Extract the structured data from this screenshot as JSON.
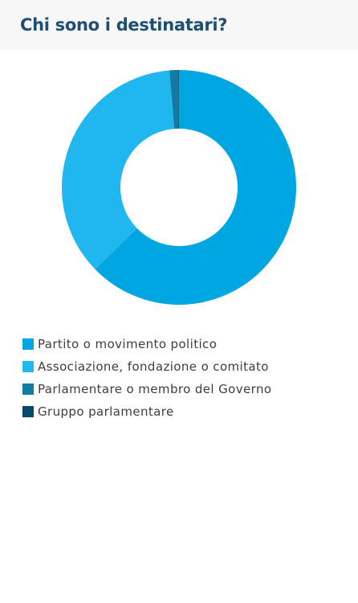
{
  "header": {
    "title": "Chi sono i destinatari?"
  },
  "chart_data": {
    "type": "pie",
    "donut": true,
    "legend_position": "bottom-left",
    "categories": [
      "Partito o movimento politico",
      "Associazione, fondazione o comitato",
      "Parlamentare o membro del Governo",
      "Gruppo parlamentare"
    ],
    "values": [
      62.7,
      36.0,
      1.2,
      0.1
    ],
    "colors": [
      "#00a6e2",
      "#20b6ef",
      "#137ba3",
      "#064a6b"
    ]
  }
}
